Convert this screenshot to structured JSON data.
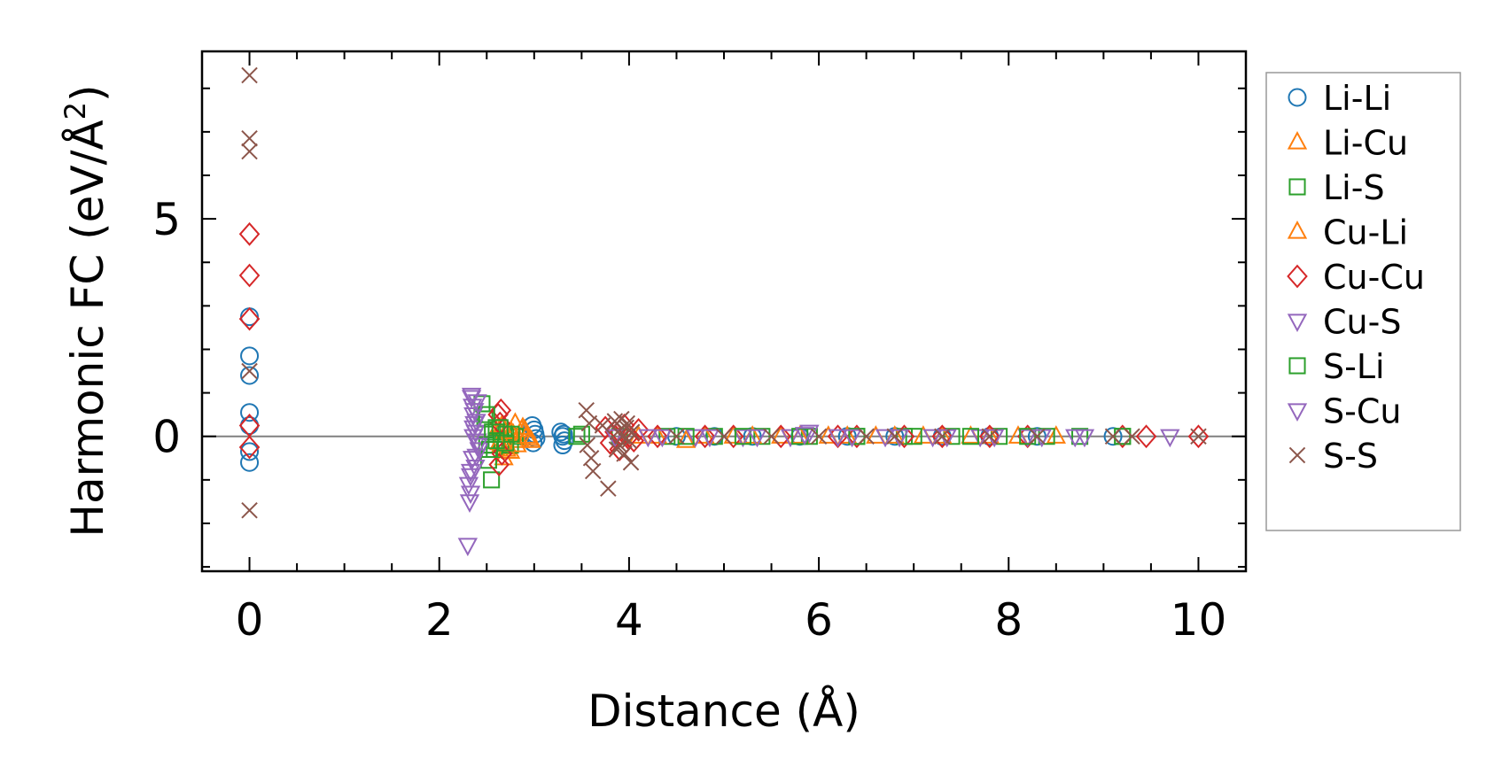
{
  "chart_data": {
    "type": "scatter",
    "title": "",
    "xlabel": "Distance (Å)",
    "ylabel": "Harmonic FC (eV/Å²)",
    "ylabel_main": "Harmonic FC (eV/Å",
    "ylabel_sup": "2",
    "ylabel_close": ")",
    "xlim": [
      -0.5,
      10.5
    ],
    "ylim": [
      -3.1,
      8.85
    ],
    "xticks": [
      0,
      2,
      4,
      6,
      8,
      10
    ],
    "xtick_labels": [
      "0",
      "2",
      "4",
      "6",
      "8",
      "10"
    ],
    "xminor_step": 0.5,
    "yticks": [
      0,
      5
    ],
    "ytick_labels": [
      "0",
      "5"
    ],
    "yminor_step": 1,
    "zero_line": 0,
    "legend_position": "outside-right",
    "series": [
      {
        "name": "Li-Li",
        "marker": "circle",
        "color": "#1f77b4",
        "x": [
          0,
          0,
          0,
          0,
          0,
          0,
          0,
          2.98,
          3.0,
          3.02,
          2.99,
          3.01,
          3.28,
          3.3,
          3.32,
          3.3,
          3.31,
          4.5,
          4.9,
          5.3,
          5.8,
          6.3,
          6.8,
          7.3,
          7.8,
          8.3,
          9.1
        ],
        "y": [
          2.75,
          1.85,
          1.4,
          0.55,
          0.25,
          -0.35,
          -0.6,
          0.25,
          0.15,
          -0.05,
          -0.15,
          0.05,
          0.1,
          0.0,
          -0.1,
          -0.2,
          0.05,
          0.0,
          0.0,
          0.0,
          0.0,
          0.0,
          0.0,
          0.0,
          0.0,
          0.0,
          0.0
        ]
      },
      {
        "name": "Li-Cu",
        "marker": "triangle-up",
        "color": "#ff7f0e",
        "x": [
          2.62,
          2.65,
          2.7,
          2.75,
          2.8,
          2.85,
          2.9,
          2.95,
          2.68,
          2.78,
          2.88,
          2.72,
          4.1,
          4.6,
          5.1,
          5.6,
          6.1,
          6.6,
          7.1,
          7.6,
          8.1,
          8.5
        ],
        "y": [
          0.2,
          -0.2,
          0.1,
          -0.35,
          0.3,
          -0.1,
          0.15,
          -0.05,
          -0.5,
          0.05,
          0.2,
          -0.25,
          0.0,
          -0.1,
          0.0,
          0.0,
          0.0,
          0.0,
          0.0,
          0.0,
          0.0,
          0.0
        ]
      },
      {
        "name": "Li-S",
        "marker": "square",
        "color": "#2ca02c",
        "x": [
          2.45,
          2.48,
          2.5,
          2.52,
          2.55,
          2.6,
          2.65,
          2.7,
          2.75,
          2.8,
          2.58,
          2.68,
          3.45,
          3.9,
          4.4,
          4.9,
          5.4,
          5.9,
          6.4,
          6.9,
          7.4,
          7.9,
          8.4,
          8.75,
          9.2
        ],
        "y": [
          0.75,
          0.4,
          -0.2,
          -0.55,
          -1.0,
          0.2,
          -0.1,
          0.05,
          -0.2,
          0.0,
          -0.3,
          0.1,
          0.0,
          0.0,
          0.0,
          0.0,
          0.0,
          0.0,
          0.0,
          0.0,
          0.0,
          0.0,
          0.0,
          0.0,
          0.0
        ]
      },
      {
        "name": "Cu-Li",
        "marker": "triangle-up",
        "color": "#ff7f0e",
        "x": [
          2.63,
          2.66,
          2.71,
          2.76,
          2.82,
          2.87,
          2.92,
          2.97,
          4.3,
          4.8,
          5.3,
          5.8,
          6.3,
          6.8,
          7.3,
          7.8
        ],
        "y": [
          -0.15,
          0.25,
          -0.3,
          0.1,
          -0.2,
          0.15,
          0.0,
          -0.1,
          0.0,
          0.0,
          0.0,
          0.0,
          0.0,
          0.0,
          0.0,
          0.0
        ]
      },
      {
        "name": "Cu-Cu",
        "marker": "diamond",
        "color": "#d62728",
        "x": [
          0,
          0,
          0,
          0,
          0,
          2.62,
          2.64,
          2.66,
          2.63,
          2.65,
          3.75,
          3.8,
          3.85,
          3.9,
          3.95,
          4.0,
          4.05,
          4.1,
          4.3,
          4.8,
          5.1,
          5.6,
          6.2,
          6.4,
          6.9,
          7.3,
          7.8,
          8.2,
          9.2,
          9.45,
          10.0
        ],
        "y": [
          4.65,
          3.7,
          2.7,
          0.25,
          -0.25,
          0.5,
          0.3,
          -0.4,
          -0.65,
          0.6,
          0.2,
          -0.15,
          0.1,
          -0.3,
          0.25,
          0.0,
          -0.1,
          0.15,
          0.0,
          0.0,
          0.0,
          0.0,
          0.0,
          0.0,
          0.0,
          0.0,
          0.0,
          0.0,
          0.0,
          0.0,
          0.0
        ]
      },
      {
        "name": "Cu-S",
        "marker": "triangle-down",
        "color": "#9467bd",
        "x": [
          2.3,
          2.32,
          2.33,
          2.34,
          2.35,
          2.36,
          2.37,
          2.38,
          2.4,
          2.42,
          2.35,
          2.38,
          2.33,
          2.4,
          2.36,
          4.2,
          4.7,
          5.2,
          5.7,
          5.9,
          6.2,
          6.7,
          7.2,
          7.7,
          8.2,
          8.7,
          9.7
        ],
        "y": [
          -2.5,
          -1.5,
          -1.3,
          0.9,
          0.7,
          0.5,
          0.3,
          0.1,
          -0.1,
          -0.3,
          -0.5,
          -0.7,
          -0.9,
          0.8,
          0.2,
          0.0,
          0.0,
          0.0,
          0.0,
          0.1,
          0.0,
          0.0,
          0.0,
          0.0,
          0.0,
          0.0,
          0.0
        ]
      },
      {
        "name": "S-Li",
        "marker": "square",
        "color": "#2ca02c",
        "x": [
          2.5,
          2.53,
          2.56,
          2.6,
          2.64,
          2.7,
          2.76,
          3.5,
          4.6,
          5.2,
          5.8,
          6.4,
          7.0,
          7.6,
          8.2,
          9.2
        ],
        "y": [
          0.5,
          -0.3,
          0.1,
          -0.1,
          0.2,
          -0.15,
          0.05,
          0.05,
          0.0,
          0.0,
          0.0,
          0.0,
          0.0,
          0.0,
          0.0,
          0.0
        ]
      },
      {
        "name": "S-Cu",
        "marker": "triangle-down",
        "color": "#9467bd",
        "x": [
          2.31,
          2.34,
          2.37,
          2.39,
          2.41,
          2.33,
          2.36,
          2.39,
          3.85,
          4.35,
          4.85,
          5.35,
          5.85,
          6.35,
          6.85,
          7.35,
          7.85,
          8.35,
          8.8
        ],
        "y": [
          -1.1,
          0.95,
          0.6,
          0.35,
          -0.2,
          -0.8,
          0.0,
          -0.45,
          0.0,
          0.0,
          0.0,
          0.0,
          0.05,
          0.0,
          0.0,
          0.0,
          0.0,
          0.0,
          0.0
        ]
      },
      {
        "name": "S-S",
        "marker": "x",
        "color": "#8c564b",
        "x": [
          0,
          0,
          0,
          0,
          0,
          3.55,
          3.58,
          3.6,
          3.62,
          3.56,
          3.72,
          3.78,
          3.85,
          3.88,
          3.9,
          3.92,
          3.95,
          3.97,
          4.0,
          4.02,
          3.93,
          3.98,
          3.87,
          4.03,
          4.5,
          5.0,
          5.5,
          6.0,
          6.5,
          6.8,
          7.3,
          7.8,
          8.3,
          9.1,
          9.3,
          10.0
        ],
        "y": [
          8.3,
          6.85,
          6.55,
          1.5,
          -1.7,
          0.6,
          0.3,
          -0.5,
          -0.8,
          -0.2,
          0.25,
          -1.2,
          0.35,
          0.1,
          -0.2,
          0.4,
          -0.4,
          0.2,
          -0.1,
          -0.6,
          0.0,
          0.3,
          -0.3,
          0.1,
          0.0,
          0.0,
          0.0,
          0.0,
          0.0,
          0.0,
          0.0,
          0.0,
          0.0,
          0.0,
          0.0,
          0.0
        ]
      }
    ]
  }
}
